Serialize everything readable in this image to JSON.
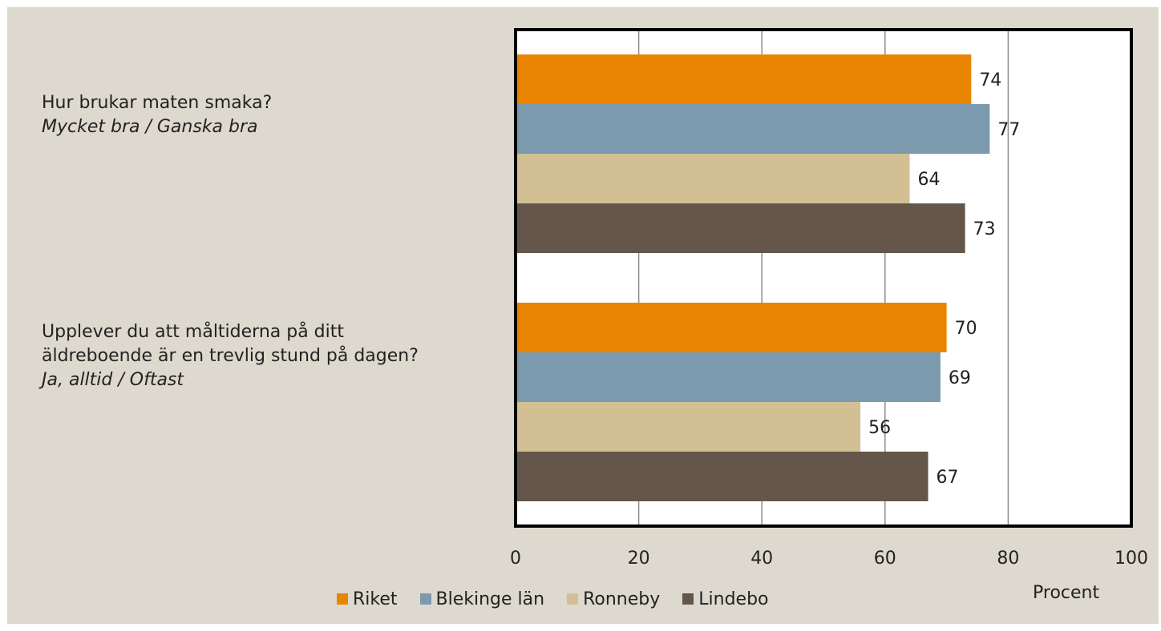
{
  "chart_data": {
    "type": "bar",
    "orientation": "horizontal",
    "categories": [
      {
        "question": "Hur brukar maten smaka?",
        "answer": "Mycket bra / Ganska bra"
      },
      {
        "question": "Upplever du att måltiderna på ditt äldreboende är en trevlig stund på dagen?",
        "answer": "Ja, alltid / Oftast"
      }
    ],
    "series": [
      {
        "name": "Riket",
        "color": "#e88400",
        "values": [
          74,
          70
        ]
      },
      {
        "name": "Blekinge län",
        "color": "#7b9aad",
        "values": [
          77,
          69
        ]
      },
      {
        "name": "Ronneby",
        "color": "#d3bf94",
        "values": [
          64,
          56
        ]
      },
      {
        "name": "Lindebo",
        "color": "#64564a",
        "values": [
          73,
          67
        ]
      }
    ],
    "xlabel": "Procent",
    "xlim": [
      0,
      100
    ],
    "xticks": [
      "0",
      "20",
      "40",
      "60",
      "80",
      "100"
    ],
    "grid": true,
    "legend_position": "bottom",
    "data_labels": true
  }
}
